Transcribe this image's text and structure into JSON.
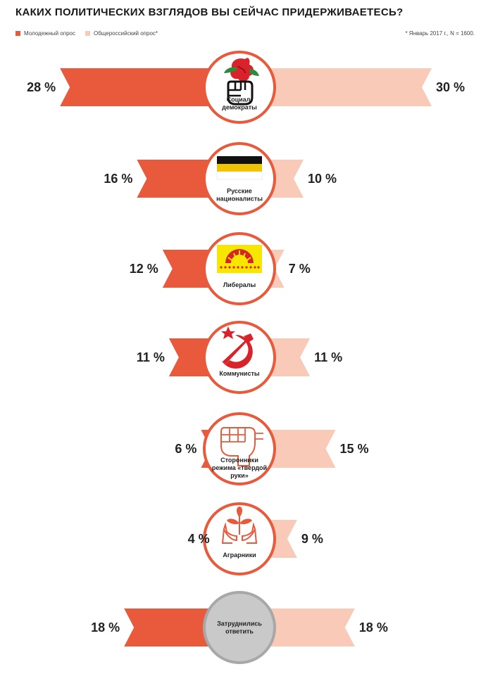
{
  "title": "КАКИХ ПОЛИТИЧЕСКИХ ВЗГЛЯДОВ ВЫ СЕЙЧАС ПРИДЕРЖИВАЕТЕСЬ?",
  "note": "* Январь 2017 г., N = 1600.",
  "colors": {
    "youth": "#e95a3d",
    "national": "#f9cab8",
    "neutral": "#c9c9c9"
  },
  "chart_data": {
    "type": "bar",
    "layout": "diverging-butterfly",
    "series": [
      {
        "name": "Молодежный опрос",
        "values": [
          28,
          16,
          12,
          11,
          6,
          4,
          18
        ]
      },
      {
        "name": "Общероссийский опрос*",
        "values": [
          30,
          10,
          7,
          11,
          15,
          9,
          18
        ]
      }
    ],
    "categories": [
      {
        "label": [
          "Социал-",
          "демократы"
        ],
        "icon": "fist-rose-icon"
      },
      {
        "label": [
          "Русские",
          "националисты"
        ],
        "icon": "imperial-flag-icon"
      },
      {
        "label": [
          "Либералы"
        ],
        "icon": "yabloko-flag-icon"
      },
      {
        "label": [
          "Коммунисты"
        ],
        "icon": "hammer-sickle-icon"
      },
      {
        "label": [
          "Сторонники",
          "режима «твердой",
          "руки»"
        ],
        "icon": "clenched-fist-icon"
      },
      {
        "label": [
          "Аграрники"
        ],
        "icon": "hands-sprout-icon"
      },
      {
        "label": [
          "Затруднились",
          "ответить"
        ],
        "icon": ""
      }
    ],
    "value_suffix": "%",
    "legend_position": "top-left"
  }
}
